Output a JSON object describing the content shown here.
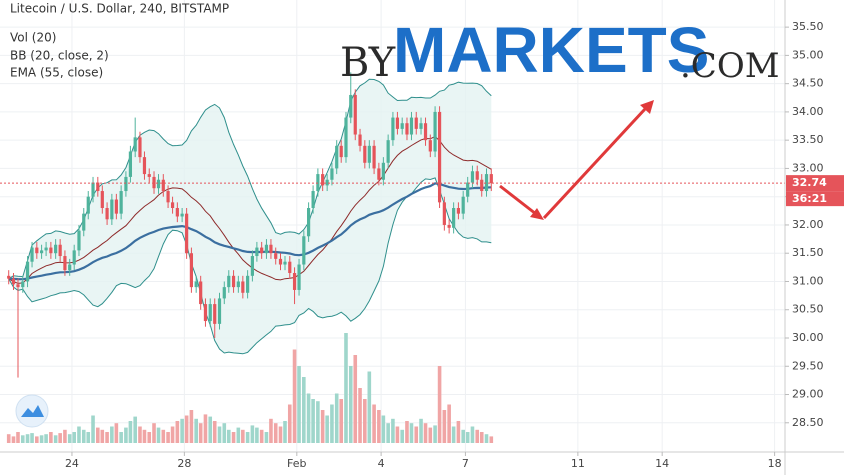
{
  "chart_data": {
    "type": "candlestick",
    "title": "Litecoin / U.S. Dollar, 240, BITSTAMP",
    "indicators": [
      {
        "label": "Vol (20)"
      },
      {
        "label": "BB (20, close, 2)",
        "period": 20,
        "stddev": 2
      },
      {
        "label": "EMA (55, close)",
        "period": 55
      }
    ],
    "x": [
      21.75,
      21.92,
      22.08,
      22.25,
      22.42,
      22.58,
      22.75,
      22.92,
      23.08,
      23.25,
      23.42,
      23.58,
      23.75,
      23.92,
      24.08,
      24.25,
      24.42,
      24.58,
      24.75,
      24.92,
      25.08,
      25.25,
      25.42,
      25.58,
      25.75,
      25.92,
      26.08,
      26.25,
      26.42,
      26.58,
      26.75,
      26.92,
      27.08,
      27.25,
      27.42,
      27.58,
      27.75,
      27.92,
      28.08,
      28.25,
      28.42,
      28.58,
      28.75,
      28.92,
      29.08,
      29.25,
      29.42,
      29.58,
      29.75,
      29.92,
      30.08,
      30.25,
      30.42,
      30.58,
      30.75,
      30.92,
      31.08,
      31.25,
      31.42,
      31.58,
      31.75,
      31.92,
      32.08,
      32.25,
      32.42,
      32.58,
      32.75,
      32.92,
      33.08,
      33.25,
      33.42,
      33.58,
      33.75,
      33.92,
      34.08,
      34.25,
      34.42,
      34.58,
      34.75,
      34.92,
      35.08,
      35.25,
      35.42,
      35.58,
      35.75,
      35.92,
      36.08,
      36.25,
      36.42,
      36.58,
      36.75,
      36.92,
      37.08,
      37.25,
      37.42,
      37.58,
      37.75,
      37.92,
      38.08,
      38.25,
      38.42,
      38.58,
      38.75,
      38.92
    ],
    "open": [
      31.1,
      31.05,
      30.95,
      30.9,
      31.0,
      31.35,
      31.6,
      31.5,
      31.55,
      31.6,
      31.5,
      31.65,
      31.45,
      31.2,
      31.3,
      31.55,
      31.9,
      32.2,
      32.5,
      32.75,
      32.6,
      32.3,
      32.1,
      32.45,
      32.2,
      32.6,
      32.85,
      33.3,
      33.55,
      33.2,
      32.9,
      32.85,
      32.65,
      32.8,
      32.6,
      32.4,
      32.3,
      32.15,
      32.2,
      31.5,
      30.9,
      31.0,
      30.6,
      30.3,
      30.6,
      30.25,
      30.7,
      30.9,
      31.1,
      30.9,
      31.0,
      30.8,
      31.1,
      31.45,
      31.6,
      31.5,
      31.65,
      31.5,
      31.4,
      31.3,
      31.35,
      31.15,
      30.85,
      31.3,
      31.8,
      32.3,
      32.6,
      32.9,
      32.7,
      32.8,
      33.0,
      33.4,
      33.2,
      33.9,
      34.3,
      33.6,
      33.4,
      33.1,
      33.4,
      33.0,
      32.8,
      33.1,
      33.5,
      33.9,
      33.7,
      33.8,
      33.6,
      33.9,
      33.7,
      33.8,
      33.5,
      33.3,
      34.0,
      32.4,
      32.0,
      31.95,
      32.3,
      32.2,
      32.5,
      32.75,
      32.95,
      32.8,
      32.6,
      32.9
    ],
    "high": [
      31.2,
      31.15,
      31.05,
      31.1,
      31.45,
      31.7,
      31.7,
      31.65,
      31.7,
      31.7,
      31.75,
      31.75,
      31.55,
      31.4,
      31.65,
      32.0,
      32.3,
      32.6,
      32.85,
      32.85,
      32.7,
      32.4,
      32.55,
      32.55,
      32.7,
      32.95,
      33.4,
      33.9,
      33.65,
      33.3,
      33.0,
      32.95,
      32.9,
      32.9,
      32.7,
      32.5,
      32.4,
      32.3,
      32.3,
      31.6,
      31.1,
      31.1,
      30.7,
      30.7,
      30.7,
      30.8,
      31.0,
      31.2,
      31.2,
      31.1,
      31.1,
      31.2,
      31.55,
      31.7,
      31.7,
      31.75,
      31.75,
      31.6,
      31.5,
      31.45,
      31.45,
      31.25,
      31.4,
      31.9,
      32.4,
      32.7,
      33.0,
      33.0,
      32.9,
      33.1,
      33.5,
      33.5,
      34.0,
      34.7,
      34.4,
      33.7,
      33.5,
      33.5,
      33.5,
      33.1,
      33.2,
      33.6,
      34.0,
      34.0,
      33.9,
      33.9,
      34.0,
      34.0,
      33.9,
      33.9,
      33.6,
      34.1,
      34.1,
      32.5,
      32.1,
      32.4,
      32.4,
      32.6,
      32.85,
      33.05,
      33.05,
      32.9,
      33.0,
      33.0
    ],
    "low": [
      30.95,
      30.85,
      29.3,
      30.8,
      30.9,
      31.25,
      31.4,
      31.4,
      31.45,
      31.4,
      31.4,
      31.35,
      31.1,
      31.1,
      31.2,
      31.45,
      31.8,
      32.1,
      32.4,
      32.5,
      32.2,
      32.0,
      32.0,
      32.1,
      32.1,
      32.5,
      32.75,
      33.2,
      33.1,
      32.8,
      32.75,
      32.55,
      32.55,
      32.5,
      32.3,
      32.2,
      32.05,
      32.05,
      31.4,
      30.8,
      30.8,
      30.5,
      30.2,
      30.2,
      30.0,
      30.15,
      30.6,
      30.8,
      30.8,
      30.8,
      30.7,
      30.7,
      31.0,
      31.35,
      31.4,
      31.4,
      31.4,
      31.3,
      31.2,
      31.2,
      31.05,
      30.6,
      30.75,
      31.2,
      31.7,
      32.2,
      32.5,
      32.6,
      32.6,
      32.7,
      32.9,
      33.1,
      33.1,
      33.8,
      33.5,
      33.3,
      33.0,
      33.0,
      32.9,
      32.7,
      32.7,
      33.0,
      33.4,
      33.6,
      33.6,
      33.5,
      33.5,
      33.6,
      33.6,
      33.4,
      33.2,
      33.2,
      32.3,
      31.9,
      31.85,
      31.85,
      32.1,
      32.1,
      32.4,
      32.65,
      32.7,
      32.5,
      32.5,
      32.6
    ],
    "close": [
      31.05,
      30.95,
      30.9,
      31.0,
      31.35,
      31.6,
      31.5,
      31.55,
      31.6,
      31.5,
      31.65,
      31.45,
      31.2,
      31.3,
      31.55,
      31.9,
      32.2,
      32.5,
      32.75,
      32.6,
      32.3,
      32.1,
      32.45,
      32.2,
      32.6,
      32.85,
      33.3,
      33.55,
      33.2,
      32.9,
      32.85,
      32.65,
      32.8,
      32.6,
      32.4,
      32.3,
      32.15,
      32.2,
      31.5,
      30.9,
      31.0,
      30.6,
      30.3,
      30.6,
      30.25,
      30.7,
      30.9,
      31.1,
      30.9,
      31.0,
      30.8,
      31.1,
      31.45,
      31.6,
      31.5,
      31.65,
      31.5,
      31.4,
      31.3,
      31.35,
      31.15,
      30.85,
      31.3,
      31.8,
      32.3,
      32.6,
      32.9,
      32.7,
      32.8,
      33.0,
      33.4,
      33.2,
      33.9,
      34.3,
      33.6,
      33.4,
      33.1,
      33.4,
      33.0,
      32.8,
      33.1,
      33.5,
      33.9,
      33.7,
      33.8,
      33.6,
      33.9,
      33.7,
      33.8,
      33.5,
      33.3,
      34.0,
      32.4,
      32.0,
      31.95,
      32.3,
      32.2,
      32.5,
      32.75,
      32.95,
      32.8,
      32.6,
      32.9,
      32.74
    ],
    "volume": [
      8,
      6,
      10,
      7,
      8,
      9,
      6,
      7,
      8,
      10,
      7,
      9,
      12,
      8,
      10,
      15,
      12,
      10,
      25,
      14,
      12,
      10,
      15,
      18,
      10,
      14,
      20,
      24,
      15,
      12,
      10,
      18,
      14,
      12,
      10,
      15,
      20,
      22,
      25,
      30,
      22,
      18,
      26,
      24,
      20,
      15,
      18,
      12,
      10,
      14,
      12,
      10,
      16,
      14,
      12,
      10,
      22,
      18,
      15,
      20,
      35,
      85,
      70,
      60,
      45,
      40,
      38,
      30,
      25,
      35,
      45,
      40,
      100,
      70,
      80,
      50,
      40,
      65,
      35,
      30,
      25,
      18,
      22,
      15,
      12,
      20,
      18,
      15,
      22,
      18,
      14,
      16,
      70,
      30,
      35,
      15,
      20,
      12,
      10,
      15,
      12,
      10,
      8,
      6
    ],
    "countdown": "36:21",
    "xlim": [
      21.44,
      49.37
    ],
    "xticks": [
      {
        "value": 24,
        "label": "24"
      },
      {
        "value": 28,
        "label": "28"
      },
      {
        "value": 32,
        "label": "Feb"
      },
      {
        "value": 35,
        "label": "4"
      },
      {
        "value": 38,
        "label": "7"
      },
      {
        "value": 42,
        "label": "11"
      },
      {
        "value": 45,
        "label": "14"
      },
      {
        "value": 49,
        "label": "18"
      }
    ],
    "ylim": [
      27.93,
      35.98
    ],
    "yticks": [
      {
        "value": 28.5,
        "label": "28.50"
      },
      {
        "value": 29,
        "label": "29.00"
      },
      {
        "value": 29.5,
        "label": "29.50"
      },
      {
        "value": 30,
        "label": "30.00"
      },
      {
        "value": 30.5,
        "label": "30.50"
      },
      {
        "value": 31,
        "label": "31.00"
      },
      {
        "value": 31.5,
        "label": "31.50"
      },
      {
        "value": 32,
        "label": "32.00"
      },
      {
        "value": 32.5,
        "label": "32.50"
      },
      {
        "value": 33,
        "label": "33.00"
      },
      {
        "value": 33.5,
        "label": "33.50"
      },
      {
        "value": 34,
        "label": "34.00"
      },
      {
        "value": 34.5,
        "label": "34.50"
      },
      {
        "value": 35,
        "label": "35.00"
      },
      {
        "value": 35.5,
        "label": "35.50"
      }
    ],
    "grid": true,
    "up_color": "#4fb39c",
    "down_color": "#e5545a",
    "volume_up_color": "#9fd6cb",
    "volume_down_color": "#f0a5a5",
    "band_color": "#2f8f8c",
    "band_fill": "#e3f3f1",
    "basis_color": "#8e2a2a",
    "ema_color": "#3b6fa0"
  },
  "watermark": {
    "prefix": "BY",
    "brand": "MARKETS",
    "suffix": ".COM"
  }
}
